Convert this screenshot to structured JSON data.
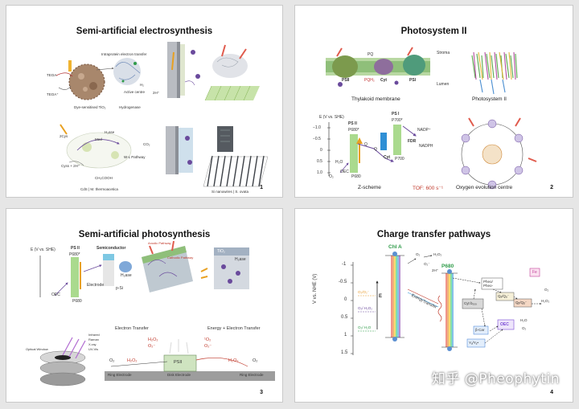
{
  "slides": [
    {
      "title": "Semi-artificial electrosynthesis",
      "page": "1",
      "labels": {
        "intra": "Intraprotein electron transfer",
        "tiO2": "Dye-sensitised TiO₂",
        "hydrogenase": "Hydrogenase",
        "active_centre": "Active centre",
        "teoa": "TEOA",
        "teoa_plus": "TEOA⁺",
        "h2": "H₂",
        "twoH": "2H⁺",
        "cys": "2Cys",
        "cys_ox": "Cyss + 2H⁺",
        "med": "Med",
        "hase": "H₂ase",
        "wl": "W-L Pathway",
        "co2": "CO₂",
        "acetate": "CH₃COOH",
        "cds": "CdS | M. thermoacetica",
        "si": "Si nanowires | S. ovata"
      }
    },
    {
      "title": "Photosystem II",
      "page": "2",
      "labels": {
        "stroma": "Stroma",
        "lumen": "Lumen",
        "psii": "PSII",
        "pq": "PQ",
        "pqh2": "PQH₂",
        "cyt": "Cyt",
        "psi": "PSI",
        "thylakoid": "Thylakoid membrane",
        "photosystem": "Photosystem II",
        "eaxis": "E (V vs. SHE)",
        "ps2": "PS II",
        "ps1": "PS I",
        "p680s": "P680*",
        "p700s": "P700*",
        "p680": "P680",
        "p700": "P700",
        "qa": "Q",
        "qb": "Q",
        "fdr": "FDR",
        "nadp": "NADP⁺",
        "nadph": "NADPH",
        "oec": "OEC",
        "h2o": "H₂O",
        "o2": "O₂",
        "zscheme": "Z-scheme",
        "tof": "TOF: 600 s⁻¹",
        "oxy": "Oxygen evolution centre",
        "ticks": [
          "−1.0",
          "−0.5",
          "0",
          "0.5",
          "1.0"
        ]
      }
    },
    {
      "title": "Semi-artificial photosynthesis",
      "page": "3",
      "labels": {
        "eaxis": "E (V vs. SHE)",
        "ps2": "PS II",
        "p680s": "P680*",
        "p680": "P680",
        "oec": "OEC",
        "semiconductor": "Semiconductor",
        "electrode": "Electrode",
        "psi": "p-Si",
        "h2ase": "H₂ase",
        "anodic": "Anodic Pathway",
        "cathodic": "Cathodic Pathway",
        "tio2": "TiO₂",
        "h2ase2": "H₂ase",
        "et": "Electron Transfer",
        "eet": "Energy + Electron Transfer",
        "o2": "O₂",
        "h2o2": "H₂O₂",
        "o2m": "O₂⁻",
        "singlet": "¹O₂",
        "psii": "PSII",
        "ring": "Ring Electrode",
        "disk": "Disk Electrode",
        "spectro": [
          "Infrared",
          "Raman",
          "X-ray",
          "UV-Vis"
        ],
        "optical": "Optical Window"
      }
    },
    {
      "title": "Charge transfer pathways",
      "page": "4",
      "labels": {
        "yaxis": "V vs. NHE (V)",
        "ticks": [
          "-1",
          "-0.5",
          "0",
          "0.5",
          "1",
          "1.5"
        ],
        "chla": "Chl A",
        "p680": "P680",
        "ered": "E",
        "energy": "Energy",
        "transfer": "Transfer",
        "pheo": "Pheo/ Pheo-",
        "cytb": "Cyt b₅₅₉",
        "oec": "OEC",
        "fe": "Fe",
        "qa": "Qₐ/Qₐ⁻",
        "qb": "Qᵦ/Qᵦ⁻",
        "bcar": "β-Car",
        "tyr": "Yᵪ/Yᵪ•",
        "o2o2m": "O₂/O₂⁻",
        "o2h2o2": "O₂/ H₂O₂",
        "o2h2o": "O₂/ H₂O",
        "h2o2": "H₂O₂",
        "o2": "O₂",
        "o2m": "O₂⁻",
        "twoH": "2H⁺",
        "h2o": "H₂O"
      }
    }
  ],
  "watermark": "知乎 @Pheophytin"
}
